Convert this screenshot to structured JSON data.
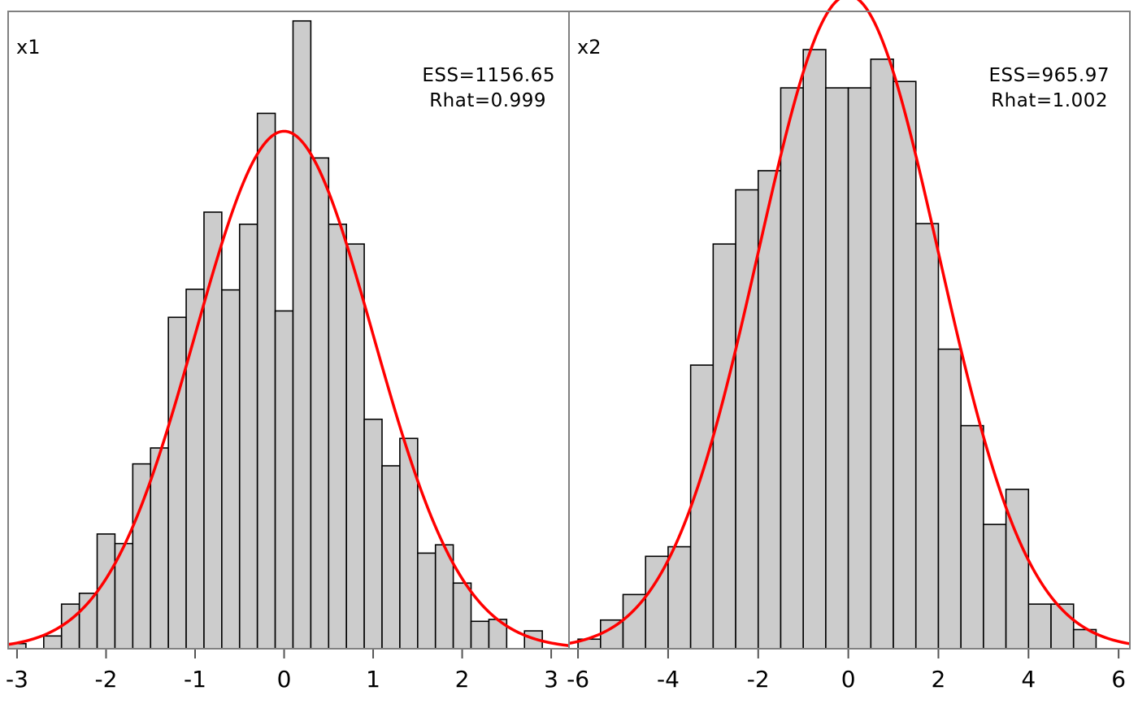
{
  "chart_data": [
    {
      "type": "histogram",
      "panel_label": "x1",
      "ess_text": "ESS=1156.65",
      "rhat_text": "Rhat=0.999",
      "xlim": [
        -3.1,
        3.2
      ],
      "ylim": [
        0,
        1
      ],
      "xticks": [
        -3,
        -2,
        -1,
        0,
        1,
        2,
        3
      ],
      "xtick_labels": [
        "-3",
        "-2",
        "-1",
        "0",
        "1",
        "2",
        "3"
      ],
      "bin_start": -3.1,
      "bin_width": 0.2,
      "bin_heights": [
        0.008,
        0.0,
        0.02,
        0.07,
        0.087,
        0.18,
        0.165,
        0.29,
        0.315,
        0.52,
        0.564,
        0.685,
        0.563,
        0.666,
        0.84,
        0.53,
        0.985,
        0.77,
        0.666,
        0.635,
        0.36,
        0.287,
        0.33,
        0.15,
        0.163,
        0.103,
        0.043,
        0.046,
        0.0,
        0.028
      ],
      "density_peak": 0.812,
      "density_sd": 1.0,
      "colors": {
        "bar_fill": "#cccccc",
        "bar_edge": "#000000",
        "curve": "#ff0000"
      },
      "grid": false
    },
    {
      "type": "histogram",
      "panel_label": "x2",
      "ess_text": "ESS=965.97",
      "rhat_text": "Rhat=1.002",
      "xlim": [
        -6.2,
        6.25
      ],
      "ylim": [
        0,
        1
      ],
      "xticks": [
        -6,
        -4,
        -2,
        0,
        2,
        4,
        6
      ],
      "xtick_labels": [
        "-6",
        "-4",
        "-2",
        "0",
        "2",
        "4",
        "6"
      ],
      "bin_start": -6.0,
      "bin_width": 0.5,
      "bin_heights": [
        0.015,
        0.045,
        0.085,
        0.145,
        0.16,
        0.445,
        0.635,
        0.72,
        0.75,
        0.88,
        0.94,
        0.88,
        0.88,
        0.925,
        0.89,
        0.667,
        0.47,
        0.35,
        0.195,
        0.25,
        0.07,
        0.07,
        0.03
      ],
      "density_peak": 1.025,
      "density_sd": 2.0,
      "colors": {
        "bar_fill": "#cccccc",
        "bar_edge": "#000000",
        "curve": "#ff0000"
      },
      "grid": false
    }
  ]
}
